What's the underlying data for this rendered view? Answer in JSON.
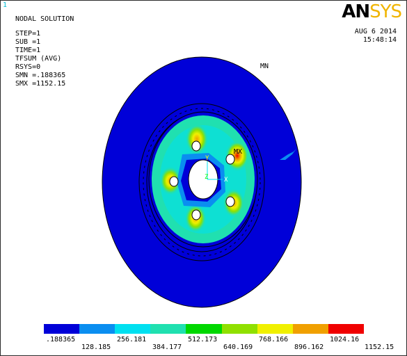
{
  "viewport_number": "1",
  "info": {
    "title": "NODAL SOLUTION",
    "step": "STEP=1",
    "sub": "SUB =1",
    "time": "TIME=1",
    "result": "TFSUM    (AVG)",
    "rsys": "RSYS=0",
    "smn": "SMN =.188365",
    "smx": "SMX =1152.15"
  },
  "logo": {
    "part1": "AN",
    "part2": "SYS"
  },
  "date": "AUG  6 2014",
  "time_of_day": "15:48:14",
  "markers": {
    "mn": "MN",
    "mx": "MX",
    "axis_y": "Y",
    "axis_z": "Z",
    "axis_x": "X"
  },
  "legend": {
    "colors": [
      "#0000d8",
      "#0a8ef0",
      "#00e0f0",
      "#20e0b0",
      "#00d800",
      "#90e000",
      "#f0f000",
      "#f0a000",
      "#f00000"
    ],
    "values_top": [
      ".188365",
      "256.181",
      "512.173",
      "768.166",
      "1024.16"
    ],
    "values_bottom": [
      "128.185",
      "384.177",
      "640.169",
      "896.162",
      "1152.15"
    ]
  }
}
